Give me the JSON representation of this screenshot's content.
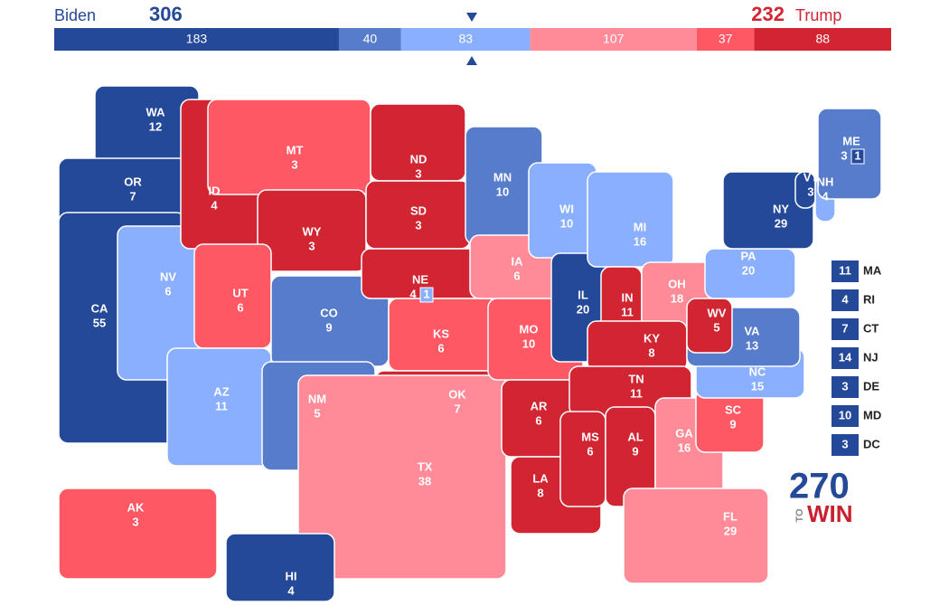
{
  "header": {
    "biden": {
      "name": "Biden",
      "total": 306,
      "color": "#244999"
    },
    "trump": {
      "name": "Trump",
      "total": 232,
      "color": "#d22532"
    },
    "segments": [
      {
        "value": 183,
        "color": "#244999"
      },
      {
        "value": 40,
        "color": "#577ccc"
      },
      {
        "value": 83,
        "color": "#8aafff"
      },
      {
        "value": 107,
        "color": "#ff8b98"
      },
      {
        "value": 37,
        "color": "#ff5865"
      },
      {
        "value": 88,
        "color": "#d22532"
      }
    ]
  },
  "states": [
    {
      "abbr": "WA",
      "ev": 12,
      "color": "#244999"
    },
    {
      "abbr": "OR",
      "ev": 7,
      "color": "#244999"
    },
    {
      "abbr": "CA",
      "ev": 55,
      "color": "#244999"
    },
    {
      "abbr": "NV",
      "ev": 6,
      "color": "#8aafff"
    },
    {
      "abbr": "ID",
      "ev": 4,
      "color": "#d22532"
    },
    {
      "abbr": "MT",
      "ev": 3,
      "color": "#ff5865"
    },
    {
      "abbr": "WY",
      "ev": 3,
      "color": "#d22532"
    },
    {
      "abbr": "UT",
      "ev": 6,
      "color": "#ff5865"
    },
    {
      "abbr": "AZ",
      "ev": 11,
      "color": "#8aafff"
    },
    {
      "abbr": "CO",
      "ev": 9,
      "color": "#577ccc"
    },
    {
      "abbr": "NM",
      "ev": 5,
      "color": "#577ccc"
    },
    {
      "abbr": "ND",
      "ev": 3,
      "color": "#d22532"
    },
    {
      "abbr": "SD",
      "ev": 3,
      "color": "#d22532"
    },
    {
      "abbr": "NE",
      "ev": 4,
      "color": "#d22532",
      "split": 1,
      "split_color": "#8aafff"
    },
    {
      "abbr": "KS",
      "ev": 6,
      "color": "#ff5865"
    },
    {
      "abbr": "OK",
      "ev": 7,
      "color": "#d22532"
    },
    {
      "abbr": "TX",
      "ev": 38,
      "color": "#ff8b98"
    },
    {
      "abbr": "MN",
      "ev": 10,
      "color": "#577ccc"
    },
    {
      "abbr": "IA",
      "ev": 6,
      "color": "#ff8b98"
    },
    {
      "abbr": "MO",
      "ev": 10,
      "color": "#ff5865"
    },
    {
      "abbr": "AR",
      "ev": 6,
      "color": "#d22532"
    },
    {
      "abbr": "LA",
      "ev": 8,
      "color": "#d22532"
    },
    {
      "abbr": "WI",
      "ev": 10,
      "color": "#8aafff"
    },
    {
      "abbr": "IL",
      "ev": 20,
      "color": "#244999"
    },
    {
      "abbr": "MI",
      "ev": 16,
      "color": "#8aafff"
    },
    {
      "abbr": "IN",
      "ev": 11,
      "color": "#d22532"
    },
    {
      "abbr": "OH",
      "ev": 18,
      "color": "#ff8b98"
    },
    {
      "abbr": "KY",
      "ev": 8,
      "color": "#d22532"
    },
    {
      "abbr": "TN",
      "ev": 11,
      "color": "#d22532"
    },
    {
      "abbr": "MS",
      "ev": 6,
      "color": "#d22532"
    },
    {
      "abbr": "AL",
      "ev": 9,
      "color": "#d22532"
    },
    {
      "abbr": "GA",
      "ev": 16,
      "color": "#ff8b98"
    },
    {
      "abbr": "FL",
      "ev": 29,
      "color": "#ff8b98"
    },
    {
      "abbr": "SC",
      "ev": 9,
      "color": "#ff5865"
    },
    {
      "abbr": "NC",
      "ev": 15,
      "color": "#8aafff"
    },
    {
      "abbr": "VA",
      "ev": 13,
      "color": "#577ccc"
    },
    {
      "abbr": "WV",
      "ev": 5,
      "color": "#d22532"
    },
    {
      "abbr": "PA",
      "ev": 20,
      "color": "#8aafff"
    },
    {
      "abbr": "NY",
      "ev": 29,
      "color": "#244999"
    },
    {
      "abbr": "VT",
      "ev": 3,
      "color": "#244999"
    },
    {
      "abbr": "NH",
      "ev": 4,
      "color": "#8aafff"
    },
    {
      "abbr": "ME",
      "ev": 3,
      "color": "#577ccc",
      "split": 1,
      "split_color": "#244999"
    },
    {
      "abbr": "HI",
      "ev": 4,
      "color": "#244999"
    },
    {
      "abbr": "AK",
      "ev": 3,
      "color": "#ff5865"
    }
  ],
  "small_states": [
    {
      "abbr": "MA",
      "ev": 11,
      "color": "#244999"
    },
    {
      "abbr": "RI",
      "ev": 4,
      "color": "#244999"
    },
    {
      "abbr": "CT",
      "ev": 7,
      "color": "#244999"
    },
    {
      "abbr": "NJ",
      "ev": 14,
      "color": "#244999"
    },
    {
      "abbr": "DE",
      "ev": 3,
      "color": "#244999"
    },
    {
      "abbr": "MD",
      "ev": 10,
      "color": "#244999"
    },
    {
      "abbr": "DC",
      "ev": 3,
      "color": "#244999"
    }
  ],
  "logo": {
    "number": "270",
    "to": "TO",
    "win": "WIN"
  }
}
